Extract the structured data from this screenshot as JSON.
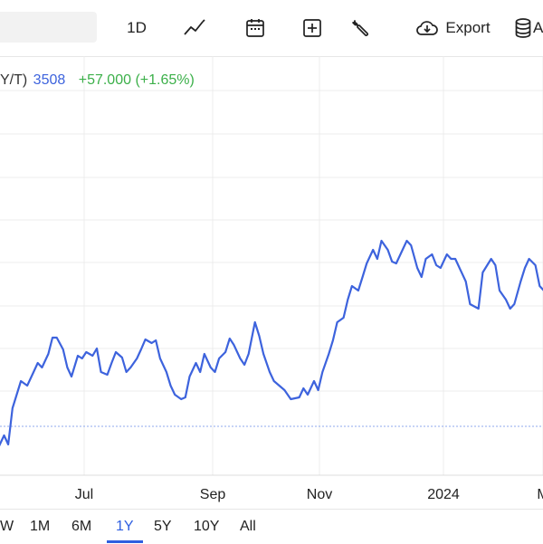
{
  "toolbar": {
    "interval_label": "1D",
    "export_label": "Export",
    "truncated_label": "A",
    "icons": [
      "line-chart-icon",
      "calendar-icon",
      "add-box-icon",
      "wrench-icon",
      "cloud-download-icon",
      "database-icon"
    ]
  },
  "legend": {
    "symbol_fragment": "Y/T)",
    "price": "3508",
    "change": "+57.000 (+1.65%)"
  },
  "colors": {
    "line": "#3d63dd",
    "up": "#3cb04a",
    "grid": "#ececec",
    "active_range": "#2f5fe0"
  },
  "chart_data": {
    "type": "line",
    "x_tick_labels": [
      "Jul",
      "Sep",
      "Nov",
      "2024",
      "M"
    ],
    "series": [
      {
        "values": [
          {
            "x": "2023-05-12",
            "y": 3420
          },
          {
            "x": "2023-05-15",
            "y": 3380
          },
          {
            "x": "2023-05-17",
            "y": 3340
          },
          {
            "x": "2023-05-19",
            "y": 3345
          },
          {
            "x": "2023-05-22",
            "y": 3360
          },
          {
            "x": "2023-05-24",
            "y": 3350
          },
          {
            "x": "2023-05-26",
            "y": 3390
          },
          {
            "x": "2023-05-30",
            "y": 3420
          },
          {
            "x": "2023-06-02",
            "y": 3415
          },
          {
            "x": "2023-06-05",
            "y": 3430
          },
          {
            "x": "2023-06-07",
            "y": 3440
          },
          {
            "x": "2023-06-09",
            "y": 3435
          },
          {
            "x": "2023-06-12",
            "y": 3450
          },
          {
            "x": "2023-06-14",
            "y": 3468
          },
          {
            "x": "2023-06-16",
            "y": 3468
          },
          {
            "x": "2023-06-19",
            "y": 3455
          },
          {
            "x": "2023-06-21",
            "y": 3435
          },
          {
            "x": "2023-06-23",
            "y": 3425
          },
          {
            "x": "2023-06-26",
            "y": 3448
          },
          {
            "x": "2023-06-28",
            "y": 3445
          },
          {
            "x": "2023-06-30",
            "y": 3452
          },
          {
            "x": "2023-07-03",
            "y": 3448
          },
          {
            "x": "2023-07-05",
            "y": 3456
          },
          {
            "x": "2023-07-07",
            "y": 3430
          },
          {
            "x": "2023-07-10",
            "y": 3427
          },
          {
            "x": "2023-07-12",
            "y": 3440
          },
          {
            "x": "2023-07-14",
            "y": 3452
          },
          {
            "x": "2023-07-17",
            "y": 3446
          },
          {
            "x": "2023-07-19",
            "y": 3430
          },
          {
            "x": "2023-07-21",
            "y": 3435
          },
          {
            "x": "2023-07-24",
            "y": 3445
          },
          {
            "x": "2023-07-26",
            "y": 3455
          },
          {
            "x": "2023-07-28",
            "y": 3466
          },
          {
            "x": "2023-07-31",
            "y": 3462
          },
          {
            "x": "2023-08-02",
            "y": 3465
          },
          {
            "x": "2023-08-04",
            "y": 3445
          },
          {
            "x": "2023-08-07",
            "y": 3430
          },
          {
            "x": "2023-08-09",
            "y": 3415
          },
          {
            "x": "2023-08-11",
            "y": 3405
          },
          {
            "x": "2023-08-14",
            "y": 3400
          },
          {
            "x": "2023-08-16",
            "y": 3402
          },
          {
            "x": "2023-08-18",
            "y": 3425
          },
          {
            "x": "2023-08-21",
            "y": 3440
          },
          {
            "x": "2023-08-23",
            "y": 3430
          },
          {
            "x": "2023-08-25",
            "y": 3450
          },
          {
            "x": "2023-08-28",
            "y": 3435
          },
          {
            "x": "2023-08-30",
            "y": 3430
          },
          {
            "x": "2023-09-01",
            "y": 3445
          },
          {
            "x": "2023-09-04",
            "y": 3452
          },
          {
            "x": "2023-09-06",
            "y": 3467
          },
          {
            "x": "2023-09-08",
            "y": 3460
          },
          {
            "x": "2023-09-11",
            "y": 3445
          },
          {
            "x": "2023-09-13",
            "y": 3438
          },
          {
            "x": "2023-09-15",
            "y": 3450
          },
          {
            "x": "2023-09-18",
            "y": 3485
          },
          {
            "x": "2023-09-20",
            "y": 3470
          },
          {
            "x": "2023-09-22",
            "y": 3450
          },
          {
            "x": "2023-09-25",
            "y": 3430
          },
          {
            "x": "2023-09-27",
            "y": 3420
          },
          {
            "x": "2023-10-02",
            "y": 3410
          },
          {
            "x": "2023-10-05",
            "y": 3400
          },
          {
            "x": "2023-10-09",
            "y": 3402
          },
          {
            "x": "2023-10-11",
            "y": 3412
          },
          {
            "x": "2023-10-13",
            "y": 3405
          },
          {
            "x": "2023-10-16",
            "y": 3420
          },
          {
            "x": "2023-10-18",
            "y": 3410
          },
          {
            "x": "2023-10-20",
            "y": 3430
          },
          {
            "x": "2023-10-23",
            "y": 3450
          },
          {
            "x": "2023-10-25",
            "y": 3465
          },
          {
            "x": "2023-10-27",
            "y": 3485
          },
          {
            "x": "2023-10-30",
            "y": 3490
          },
          {
            "x": "2023-11-01",
            "y": 3510
          },
          {
            "x": "2023-11-03",
            "y": 3525
          },
          {
            "x": "2023-11-06",
            "y": 3520
          },
          {
            "x": "2023-11-08",
            "y": 3535
          },
          {
            "x": "2023-11-10",
            "y": 3550
          },
          {
            "x": "2023-11-13",
            "y": 3565
          },
          {
            "x": "2023-11-15",
            "y": 3555
          },
          {
            "x": "2023-11-17",
            "y": 3575
          },
          {
            "x": "2023-11-20",
            "y": 3565
          },
          {
            "x": "2023-11-22",
            "y": 3552
          },
          {
            "x": "2023-11-24",
            "y": 3550
          },
          {
            "x": "2023-11-27",
            "y": 3565
          },
          {
            "x": "2023-11-29",
            "y": 3575
          },
          {
            "x": "2023-12-01",
            "y": 3570
          },
          {
            "x": "2023-12-04",
            "y": 3545
          },
          {
            "x": "2023-12-06",
            "y": 3535
          },
          {
            "x": "2023-12-08",
            "y": 3555
          },
          {
            "x": "2023-12-11",
            "y": 3560
          },
          {
            "x": "2023-12-13",
            "y": 3548
          },
          {
            "x": "2023-12-15",
            "y": 3545
          },
          {
            "x": "2023-12-18",
            "y": 3560
          },
          {
            "x": "2023-12-20",
            "y": 3555
          },
          {
            "x": "2023-12-22",
            "y": 3555
          },
          {
            "x": "2023-12-27",
            "y": 3530
          },
          {
            "x": "2023-12-29",
            "y": 3505
          },
          {
            "x": "2024-01-02",
            "y": 3500
          },
          {
            "x": "2024-01-04",
            "y": 3540
          },
          {
            "x": "2024-01-08",
            "y": 3555
          },
          {
            "x": "2024-01-10",
            "y": 3548
          },
          {
            "x": "2024-01-12",
            "y": 3520
          },
          {
            "x": "2024-01-15",
            "y": 3510
          },
          {
            "x": "2024-01-17",
            "y": 3500
          },
          {
            "x": "2024-01-19",
            "y": 3505
          },
          {
            "x": "2024-01-22",
            "y": 3530
          },
          {
            "x": "2024-01-24",
            "y": 3545
          },
          {
            "x": "2024-01-26",
            "y": 3555
          },
          {
            "x": "2024-01-29",
            "y": 3548
          },
          {
            "x": "2024-01-31",
            "y": 3525
          },
          {
            "x": "2024-02-02",
            "y": 3520
          },
          {
            "x": "2024-02-05",
            "y": 3528
          },
          {
            "x": "2024-02-07",
            "y": 3530
          },
          {
            "x": "2024-02-09",
            "y": 3527
          },
          {
            "x": "2024-02-12",
            "y": 3490
          },
          {
            "x": "2024-02-14",
            "y": 3470
          },
          {
            "x": "2024-02-16",
            "y": 3475
          },
          {
            "x": "2024-02-19",
            "y": 3460
          },
          {
            "x": "2024-02-21",
            "y": 3465
          }
        ]
      }
    ],
    "reference_line": 3370
  },
  "range_tabs": [
    "W",
    "1M",
    "6M",
    "1Y",
    "5Y",
    "10Y",
    "All"
  ],
  "active_range": "1Y"
}
